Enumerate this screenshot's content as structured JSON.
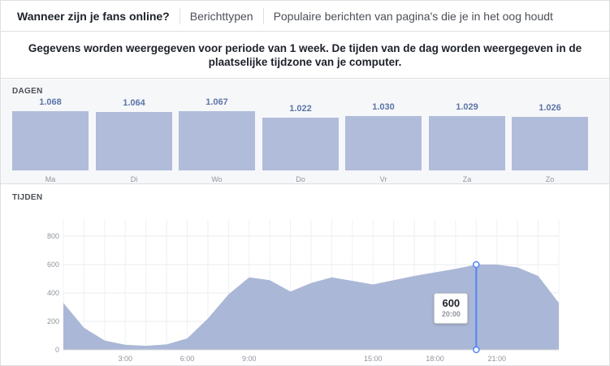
{
  "tabs": [
    {
      "label": "Wanneer zijn je fans online?",
      "active": true
    },
    {
      "label": "Berichttypen",
      "active": false
    },
    {
      "label": "Populaire berichten van pagina's die je in het oog houdt",
      "active": false
    }
  ],
  "intro": {
    "text": "Gegevens worden weergegeven voor periode van 1 week. De tijden van de dag worden weergegeven in de plaatselijke tijdzone van je computer."
  },
  "days": {
    "label": "DAGEN",
    "items": [
      {
        "day": "Ma",
        "value_label": "1.068",
        "value": 1068
      },
      {
        "day": "Di",
        "value_label": "1.064",
        "value": 1064
      },
      {
        "day": "Wo",
        "value_label": "1.067",
        "value": 1067
      },
      {
        "day": "Do",
        "value_label": "1.022",
        "value": 1022
      },
      {
        "day": "Vr",
        "value_label": "1.030",
        "value": 1030
      },
      {
        "day": "Za",
        "value_label": "1.029",
        "value": 1029
      },
      {
        "day": "Zo",
        "value_label": "1.026",
        "value": 1026
      }
    ]
  },
  "times": {
    "label": "TIJDEN",
    "tooltip": {
      "value": "600",
      "time": "20:00"
    }
  },
  "colors": {
    "accent": "#5b74a8",
    "bar_fill": "#b0bcda",
    "area_fill": "#abb7d6",
    "highlight_line": "#4f86f7"
  },
  "chart_data": {
    "type": "area",
    "x_ticks": [
      "3:00",
      "6:00",
      "9:00",
      "15:00",
      "18:00",
      "21:00"
    ],
    "y_ticks": [
      "0",
      "200",
      "400",
      "600",
      "800"
    ],
    "ylim": [
      0,
      800
    ],
    "x": [
      0,
      1,
      2,
      3,
      4,
      5,
      6,
      7,
      8,
      9,
      10,
      11,
      12,
      13,
      14,
      15,
      16,
      17,
      18,
      19,
      20,
      21,
      22,
      23,
      24
    ],
    "values": [
      330,
      155,
      65,
      35,
      28,
      38,
      80,
      220,
      390,
      510,
      490,
      410,
      470,
      510,
      485,
      460,
      490,
      520,
      545,
      570,
      600,
      600,
      580,
      520,
      330
    ],
    "highlight": {
      "x": 20,
      "value": 600,
      "time": "20:00"
    }
  }
}
